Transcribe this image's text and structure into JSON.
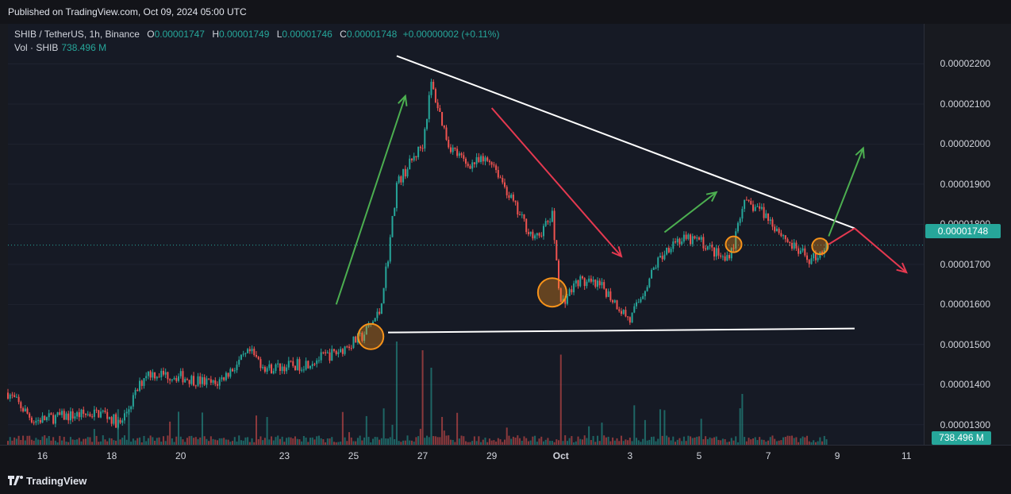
{
  "header": {
    "published": "Published on TradingView.com, Oct 09, 2024 05:00 UTC"
  },
  "legend": {
    "symbol": "SHIB / TetherUS, 1h, Binance",
    "open_label": "O",
    "open": "0.00001747",
    "high_label": "H",
    "high": "0.00001749",
    "low_label": "L",
    "low": "0.00001746",
    "close_label": "C",
    "close": "0.00001748",
    "change": "+0.00000002 (+0.11%)",
    "vol_label": "Vol · SHIB",
    "vol_value": "738.496 M"
  },
  "price_axis": {
    "ticks": [
      "0.00002200",
      "0.00002100",
      "0.00002000",
      "0.00001900",
      "0.00001800",
      "0.00001700",
      "0.00001600",
      "0.00001500",
      "0.00001400",
      "0.00001300"
    ],
    "last_price": "0.00001748",
    "volume_badge": "738.496 M"
  },
  "time_axis": {
    "labels": [
      {
        "text": "16",
        "bold": false
      },
      {
        "text": "18",
        "bold": false
      },
      {
        "text": "20",
        "bold": false
      },
      {
        "text": "23",
        "bold": false
      },
      {
        "text": "25",
        "bold": false
      },
      {
        "text": "27",
        "bold": false
      },
      {
        "text": "29",
        "bold": false
      },
      {
        "text": "Oct",
        "bold": true
      },
      {
        "text": "3",
        "bold": false
      },
      {
        "text": "5",
        "bold": false
      },
      {
        "text": "7",
        "bold": false
      },
      {
        "text": "9",
        "bold": false
      },
      {
        "text": "11",
        "bold": false
      }
    ]
  },
  "footer": {
    "brand": "TradingView"
  },
  "colors": {
    "up": "#26a69a",
    "down": "#ef5350",
    "background": "#161a25",
    "trend_line": "#ffffff",
    "arrow_up": "#4caf50",
    "arrow_down": "#e53950",
    "marker": "#f7931a"
  },
  "chart_data": {
    "type": "candlestick",
    "symbol": "SHIB / TetherUS",
    "interval": "1h",
    "exchange": "Binance",
    "ylim": [
      1.25e-05,
      2.3e-05
    ],
    "x_range": [
      "2024-09-15T12:00",
      "2024-10-12T00:00"
    ],
    "price_path": [
      {
        "t": "2024-09-15T12:00",
        "p": 1.38e-05
      },
      {
        "t": "2024-09-16T06:00",
        "p": 1.31e-05
      },
      {
        "t": "2024-09-17T00:00",
        "p": 1.32e-05
      },
      {
        "t": "2024-09-18T06:00",
        "p": 1.33e-05
      },
      {
        "t": "2024-09-18T18:00",
        "p": 1.3e-05
      },
      {
        "t": "2024-09-19T12:00",
        "p": 1.43e-05
      },
      {
        "t": "2024-09-20T12:00",
        "p": 1.42e-05
      },
      {
        "t": "2024-09-21T12:00",
        "p": 1.4e-05
      },
      {
        "t": "2024-09-22T12:00",
        "p": 1.48e-05
      },
      {
        "t": "2024-09-23T00:00",
        "p": 1.44e-05
      },
      {
        "t": "2024-09-24T00:00",
        "p": 1.45e-05
      },
      {
        "t": "2024-09-25T00:00",
        "p": 1.48e-05
      },
      {
        "t": "2024-09-25T18:00",
        "p": 1.52e-05
      },
      {
        "t": "2024-09-26T06:00",
        "p": 1.58e-05
      },
      {
        "t": "2024-09-26T12:00",
        "p": 1.72e-05
      },
      {
        "t": "2024-09-26T18:00",
        "p": 1.9e-05
      },
      {
        "t": "2024-09-27T12:00",
        "p": 2e-05
      },
      {
        "t": "2024-09-27T18:00",
        "p": 2.15e-05
      },
      {
        "t": "2024-09-28T06:00",
        "p": 2e-05
      },
      {
        "t": "2024-09-28T18:00",
        "p": 1.95e-05
      },
      {
        "t": "2024-09-29T12:00",
        "p": 1.96e-05
      },
      {
        "t": "2024-09-30T06:00",
        "p": 1.83e-05
      },
      {
        "t": "2024-09-30T18:00",
        "p": 1.76e-05
      },
      {
        "t": "2024-10-01T06:00",
        "p": 1.82e-05
      },
      {
        "t": "2024-10-01T12:00",
        "p": 1.6e-05
      },
      {
        "t": "2024-10-02T00:00",
        "p": 1.66e-05
      },
      {
        "t": "2024-10-02T18:00",
        "p": 1.64e-05
      },
      {
        "t": "2024-10-03T12:00",
        "p": 1.56e-05
      },
      {
        "t": "2024-10-04T06:00",
        "p": 1.7e-05
      },
      {
        "t": "2024-10-04T18:00",
        "p": 1.76e-05
      },
      {
        "t": "2024-10-05T12:00",
        "p": 1.76e-05
      },
      {
        "t": "2024-10-06T06:00",
        "p": 1.71e-05
      },
      {
        "t": "2024-10-06T12:00",
        "p": 1.75e-05
      },
      {
        "t": "2024-10-06T18:00",
        "p": 1.85e-05
      },
      {
        "t": "2024-10-07T06:00",
        "p": 1.84e-05
      },
      {
        "t": "2024-10-07T18:00",
        "p": 1.79e-05
      },
      {
        "t": "2024-10-08T06:00",
        "p": 1.74e-05
      },
      {
        "t": "2024-10-08T18:00",
        "p": 1.71e-05
      },
      {
        "t": "2024-10-09T05:00",
        "p": 1.748e-05
      }
    ],
    "volume_spikes": [
      {
        "t": "2024-09-26T18:00",
        "v": 1.0
      },
      {
        "t": "2024-09-27T12:00",
        "v": 0.9
      },
      {
        "t": "2024-09-27T18:00",
        "v": 0.7
      },
      {
        "t": "2024-10-01T12:00",
        "v": 0.85
      },
      {
        "t": "2024-10-06T18:00",
        "v": 0.4
      }
    ],
    "annotations": {
      "resistance_line": [
        {
          "t": "2024-09-26T18:00",
          "p": 2.22e-05
        },
        {
          "t": "2024-10-10T00:00",
          "p": 1.79e-05
        }
      ],
      "support_line": [
        {
          "t": "2024-09-26T12:00",
          "p": 1.53e-05
        },
        {
          "t": "2024-10-10T00:00",
          "p": 1.54e-05
        }
      ],
      "green_arrows": [
        [
          {
            "t": "2024-09-25T00:00",
            "p": 1.6e-05
          },
          {
            "t": "2024-09-27T00:00",
            "p": 2.12e-05
          }
        ],
        [
          {
            "t": "2024-10-04T12:00",
            "p": 1.78e-05
          },
          {
            "t": "2024-10-06T00:00",
            "p": 1.88e-05
          }
        ],
        [
          {
            "t": "2024-10-09T06:00",
            "p": 1.77e-05
          },
          {
            "t": "2024-10-10T06:00",
            "p": 1.99e-05
          }
        ]
      ],
      "red_arrows": [
        [
          {
            "t": "2024-09-29T12:00",
            "p": 2.09e-05
          },
          {
            "t": "2024-10-03T06:00",
            "p": 1.72e-05
          }
        ],
        [
          {
            "t": "2024-10-09T06:00",
            "p": 1.75e-05
          },
          {
            "t": "2024-10-10T00:00",
            "p": 1.79e-05
          }
        ],
        [
          {
            "t": "2024-10-10T00:00",
            "p": 1.79e-05
          },
          {
            "t": "2024-10-11T12:00",
            "p": 1.68e-05
          }
        ]
      ],
      "circles": [
        {
          "t": "2024-09-26T00:00",
          "p": 1.52e-05,
          "size": "medium"
        },
        {
          "t": "2024-10-01T06:00",
          "p": 1.63e-05,
          "size": "large"
        },
        {
          "t": "2024-10-06T12:00",
          "p": 1.75e-05,
          "size": "small"
        },
        {
          "t": "2024-10-09T00:00",
          "p": 1.745e-05,
          "size": "small"
        }
      ]
    }
  }
}
